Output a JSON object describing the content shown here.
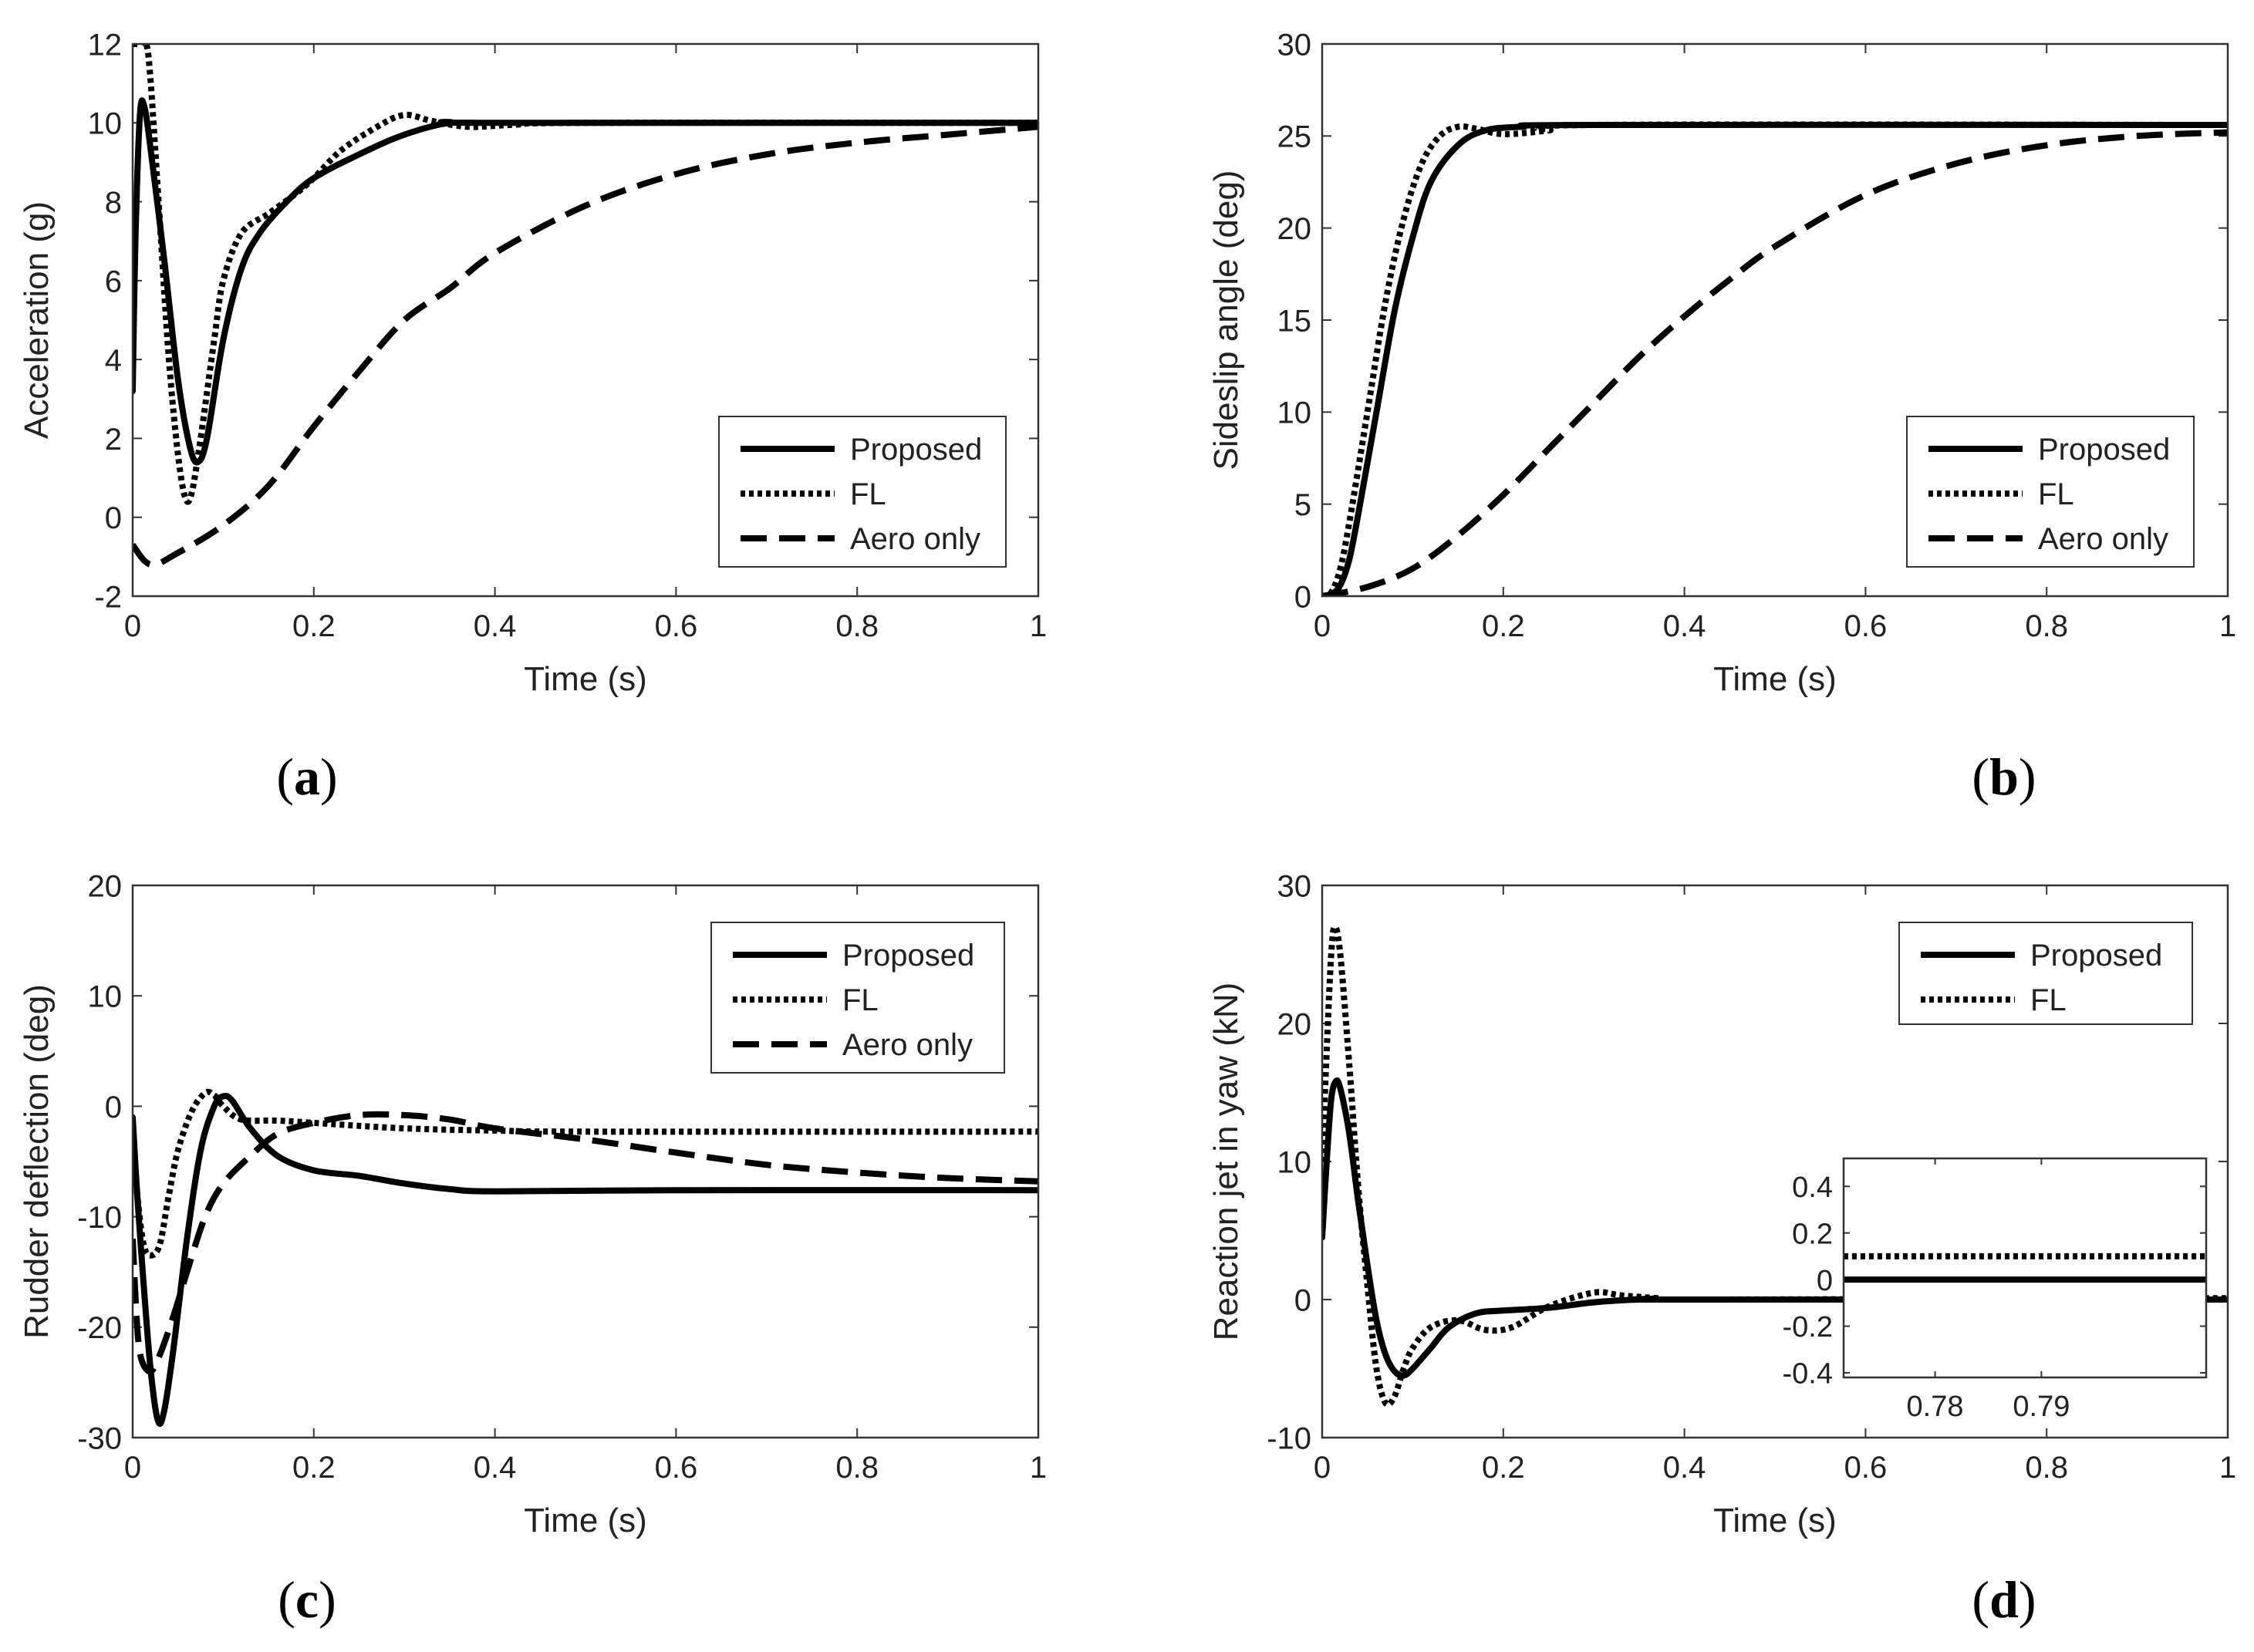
{
  "figure": {
    "legend": {
      "proposed": "Proposed",
      "fl": "FL",
      "aero": "Aero only"
    }
  },
  "chart_data": [
    {
      "id": "a",
      "type": "line",
      "caption": "a",
      "xlabel": "Time (s)",
      "ylabel": "Acceleration (g)",
      "xlim": [
        0,
        1
      ],
      "ylim": [
        -2,
        12
      ],
      "xticks": [
        0,
        0.2,
        0.4,
        0.6,
        0.8,
        1
      ],
      "xtick_labels": [
        "0",
        "0.2",
        "0.4",
        "0.6",
        "0.8",
        "1"
      ],
      "yticks": [
        -2,
        0,
        2,
        4,
        6,
        8,
        10,
        12
      ],
      "ytick_labels": [
        "-2",
        "0",
        "2",
        "4",
        "6",
        "8",
        "10",
        "12"
      ],
      "legend_position": "bottom-right",
      "series": [
        {
          "name": "Proposed",
          "style": "solid",
          "points": [
            [
              0,
              3.2
            ],
            [
              0.003,
              7
            ],
            [
              0.008,
              10.2
            ],
            [
              0.013,
              10.4
            ],
            [
              0.02,
              9.3
            ],
            [
              0.035,
              6.5
            ],
            [
              0.05,
              3.5
            ],
            [
              0.063,
              1.8
            ],
            [
              0.072,
              1.4
            ],
            [
              0.082,
              2
            ],
            [
              0.1,
              4.5
            ],
            [
              0.12,
              6.3
            ],
            [
              0.14,
              7.2
            ],
            [
              0.17,
              8
            ],
            [
              0.2,
              8.6
            ],
            [
              0.25,
              9.2
            ],
            [
              0.3,
              9.7
            ],
            [
              0.35,
              10
            ],
            [
              0.4,
              10
            ],
            [
              1,
              10
            ]
          ]
        },
        {
          "name": "FL",
          "style": "dotted",
          "points": [
            [
              0,
              12
            ],
            [
              0.008,
              12
            ],
            [
              0.015,
              12
            ],
            [
              0.02,
              11
            ],
            [
              0.03,
              7.5
            ],
            [
              0.04,
              4
            ],
            [
              0.05,
              1.6
            ],
            [
              0.058,
              0.5
            ],
            [
              0.065,
              0.6
            ],
            [
              0.075,
              2
            ],
            [
              0.09,
              4.5
            ],
            [
              0.1,
              6
            ],
            [
              0.12,
              7.2
            ],
            [
              0.15,
              7.7
            ],
            [
              0.18,
              8.2
            ],
            [
              0.2,
              8.6
            ],
            [
              0.23,
              9.3
            ],
            [
              0.27,
              9.9
            ],
            [
              0.3,
              10.2
            ],
            [
              0.33,
              10.05
            ],
            [
              0.37,
              9.9
            ],
            [
              0.42,
              9.95
            ],
            [
              0.5,
              10
            ],
            [
              1,
              10
            ]
          ]
        },
        {
          "name": "Aero only",
          "style": "dashed",
          "points": [
            [
              0,
              -0.7
            ],
            [
              0.02,
              -1.2
            ],
            [
              0.05,
              -0.9
            ],
            [
              0.1,
              -0.2
            ],
            [
              0.15,
              0.8
            ],
            [
              0.2,
              2.3
            ],
            [
              0.25,
              3.7
            ],
            [
              0.3,
              5
            ],
            [
              0.35,
              5.8
            ],
            [
              0.4,
              6.7
            ],
            [
              0.5,
              7.9
            ],
            [
              0.6,
              8.7
            ],
            [
              0.7,
              9.2
            ],
            [
              0.8,
              9.5
            ],
            [
              0.9,
              9.7
            ],
            [
              1,
              9.9
            ]
          ]
        }
      ]
    },
    {
      "id": "b",
      "type": "line",
      "caption": "b",
      "xlabel": "Time (s)",
      "ylabel": "Sideslip angle (deg)",
      "xlim": [
        0,
        1
      ],
      "ylim": [
        0,
        30
      ],
      "xticks": [
        0,
        0.2,
        0.4,
        0.6,
        0.8,
        1
      ],
      "xtick_labels": [
        "0",
        "0.2",
        "0.4",
        "0.6",
        "0.8",
        "1"
      ],
      "yticks": [
        0,
        5,
        10,
        15,
        20,
        25,
        30
      ],
      "ytick_labels": [
        "0",
        "5",
        "10",
        "15",
        "20",
        "25",
        "30"
      ],
      "legend_position": "bottom-right",
      "series": [
        {
          "name": "Proposed",
          "style": "solid",
          "points": [
            [
              0,
              0
            ],
            [
              0.01,
              0.1
            ],
            [
              0.02,
              0.6
            ],
            [
              0.03,
              2
            ],
            [
              0.04,
              4.5
            ],
            [
              0.06,
              10
            ],
            [
              0.08,
              15.5
            ],
            [
              0.1,
              19.5
            ],
            [
              0.12,
              22.5
            ],
            [
              0.15,
              24.5
            ],
            [
              0.18,
              25.3
            ],
            [
              0.22,
              25.5
            ],
            [
              0.3,
              25.6
            ],
            [
              1,
              25.6
            ]
          ]
        },
        {
          "name": "FL",
          "style": "dotted",
          "points": [
            [
              0,
              0
            ],
            [
              0.01,
              0.2
            ],
            [
              0.02,
              1.5
            ],
            [
              0.03,
              4
            ],
            [
              0.05,
              10
            ],
            [
              0.07,
              16
            ],
            [
              0.09,
              20.5
            ],
            [
              0.11,
              23.5
            ],
            [
              0.13,
              25
            ],
            [
              0.15,
              25.5
            ],
            [
              0.17,
              25.4
            ],
            [
              0.2,
              25.1
            ],
            [
              0.25,
              25.3
            ],
            [
              0.3,
              25.6
            ],
            [
              1,
              25.6
            ]
          ]
        },
        {
          "name": "Aero only",
          "style": "dashed",
          "points": [
            [
              0,
              0
            ],
            [
              0.05,
              0.5
            ],
            [
              0.1,
              1.5
            ],
            [
              0.15,
              3.3
            ],
            [
              0.2,
              5.5
            ],
            [
              0.25,
              8
            ],
            [
              0.3,
              10.5
            ],
            [
              0.35,
              13
            ],
            [
              0.4,
              15.2
            ],
            [
              0.45,
              17.2
            ],
            [
              0.5,
              19
            ],
            [
              0.6,
              21.8
            ],
            [
              0.7,
              23.5
            ],
            [
              0.8,
              24.5
            ],
            [
              0.9,
              25
            ],
            [
              1,
              25.2
            ]
          ]
        }
      ]
    },
    {
      "id": "c",
      "type": "line",
      "caption": "c",
      "xlabel": "Time (s)",
      "ylabel": "Rudder deflection (deg)",
      "xlim": [
        0,
        1
      ],
      "ylim": [
        -30,
        20
      ],
      "xticks": [
        0,
        0.2,
        0.4,
        0.6,
        0.8,
        1
      ],
      "xtick_labels": [
        "0",
        "0.2",
        "0.4",
        "0.6",
        "0.8",
        "1"
      ],
      "yticks": [
        -30,
        -20,
        -10,
        0,
        10,
        20
      ],
      "ytick_labels": [
        "-30",
        "-20",
        "-10",
        "0",
        "10",
        "20"
      ],
      "legend_position": "top-right",
      "series": [
        {
          "name": "Proposed",
          "style": "solid",
          "points": [
            [
              0,
              -1
            ],
            [
              0.005,
              -8
            ],
            [
              0.012,
              -16
            ],
            [
              0.02,
              -24
            ],
            [
              0.028,
              -28.5
            ],
            [
              0.035,
              -27.5
            ],
            [
              0.045,
              -22
            ],
            [
              0.06,
              -12
            ],
            [
              0.075,
              -4
            ],
            [
              0.09,
              0
            ],
            [
              0.1,
              0.9
            ],
            [
              0.11,
              0.5
            ],
            [
              0.13,
              -2
            ],
            [
              0.16,
              -4.5
            ],
            [
              0.2,
              -5.8
            ],
            [
              0.25,
              -6.3
            ],
            [
              0.3,
              -7
            ],
            [
              0.35,
              -7.5
            ],
            [
              0.4,
              -7.7
            ],
            [
              0.6,
              -7.6
            ],
            [
              1,
              -7.6
            ]
          ]
        },
        {
          "name": "FL",
          "style": "dotted",
          "points": [
            [
              0,
              -3
            ],
            [
              0.005,
              -8
            ],
            [
              0.012,
              -12.5
            ],
            [
              0.02,
              -13.5
            ],
            [
              0.03,
              -12.5
            ],
            [
              0.04,
              -8
            ],
            [
              0.05,
              -4
            ],
            [
              0.065,
              -0.5
            ],
            [
              0.08,
              1.2
            ],
            [
              0.09,
              1
            ],
            [
              0.1,
              0
            ],
            [
              0.12,
              -1.2
            ],
            [
              0.16,
              -1.3
            ],
            [
              0.2,
              -1.5
            ],
            [
              0.3,
              -2
            ],
            [
              0.4,
              -2.2
            ],
            [
              0.5,
              -2.3
            ],
            [
              1,
              -2.3
            ]
          ]
        },
        {
          "name": "Aero only",
          "style": "dashed",
          "points": [
            [
              0,
              -12
            ],
            [
              0.005,
              -20
            ],
            [
              0.01,
              -23
            ],
            [
              0.02,
              -24
            ],
            [
              0.03,
              -22.5
            ],
            [
              0.045,
              -19
            ],
            [
              0.06,
              -15
            ],
            [
              0.08,
              -10
            ],
            [
              0.1,
              -7
            ],
            [
              0.13,
              -4.5
            ],
            [
              0.16,
              -2.5
            ],
            [
              0.2,
              -1.5
            ],
            [
              0.25,
              -0.8
            ],
            [
              0.3,
              -0.8
            ],
            [
              0.35,
              -1.2
            ],
            [
              0.4,
              -2
            ],
            [
              0.5,
              -3
            ],
            [
              0.6,
              -4.2
            ],
            [
              0.7,
              -5.3
            ],
            [
              0.8,
              -6
            ],
            [
              0.9,
              -6.5
            ],
            [
              1,
              -6.8
            ]
          ]
        }
      ]
    },
    {
      "id": "d",
      "type": "line",
      "caption": "d",
      "xlabel": "Time (s)",
      "ylabel": "Reaction jet in yaw (kN)",
      "xlim": [
        0,
        1
      ],
      "ylim": [
        -10,
        30
      ],
      "xticks": [
        0,
        0.2,
        0.4,
        0.6,
        0.8,
        1
      ],
      "xtick_labels": [
        "0",
        "0.2",
        "0.4",
        "0.6",
        "0.8",
        "1"
      ],
      "yticks": [
        -10,
        0,
        10,
        20,
        30
      ],
      "ytick_labels": [
        "-10",
        "0",
        "10",
        "20",
        "30"
      ],
      "legend_position": "top-right",
      "series": [
        {
          "name": "Proposed",
          "style": "solid",
          "points": [
            [
              0,
              4.5
            ],
            [
              0.005,
              10
            ],
            [
              0.01,
              14.5
            ],
            [
              0.015,
              15.8
            ],
            [
              0.02,
              15.3
            ],
            [
              0.03,
              12
            ],
            [
              0.04,
              7
            ],
            [
              0.05,
              2.5
            ],
            [
              0.06,
              -1.5
            ],
            [
              0.07,
              -4
            ],
            [
              0.08,
              -5.2
            ],
            [
              0.09,
              -5.5
            ],
            [
              0.1,
              -5
            ],
            [
              0.12,
              -3.5
            ],
            [
              0.14,
              -2
            ],
            [
              0.17,
              -1
            ],
            [
              0.2,
              -0.8
            ],
            [
              0.25,
              -0.6
            ],
            [
              0.3,
              -0.2
            ],
            [
              0.35,
              0
            ],
            [
              0.4,
              0
            ],
            [
              1,
              0
            ]
          ]
        },
        {
          "name": "FL",
          "style": "dotted",
          "points": [
            [
              0,
              10
            ],
            [
              0.005,
              18
            ],
            [
              0.01,
              25
            ],
            [
              0.014,
              27
            ],
            [
              0.02,
              25
            ],
            [
              0.03,
              17
            ],
            [
              0.04,
              8
            ],
            [
              0.05,
              1
            ],
            [
              0.06,
              -5
            ],
            [
              0.07,
              -7.5
            ],
            [
              0.08,
              -7
            ],
            [
              0.09,
              -5
            ],
            [
              0.1,
              -3.5
            ],
            [
              0.12,
              -2
            ],
            [
              0.15,
              -1.5
            ],
            [
              0.18,
              -2.2
            ],
            [
              0.21,
              -2
            ],
            [
              0.25,
              -0.5
            ],
            [
              0.3,
              0.5
            ],
            [
              0.33,
              0.3
            ],
            [
              0.37,
              0.1
            ],
            [
              0.4,
              0
            ],
            [
              1,
              0.1
            ]
          ]
        }
      ],
      "inset": {
        "xlim": [
          0.7714,
          0.8055
        ],
        "ylim": [
          -0.42,
          0.52
        ],
        "xticks": [
          0.78,
          0.79
        ],
        "xtick_labels": [
          "0.78",
          "0.79"
        ],
        "yticks": [
          -0.4,
          -0.2,
          0,
          0.2,
          0.4
        ],
        "ytick_labels": [
          "-0.4",
          "-0.2",
          "0",
          "0.2",
          "0.4"
        ],
        "series": [
          {
            "name": "Proposed",
            "style": "solid",
            "points": [
              [
                0.7714,
                0
              ],
              [
                0.8055,
                0
              ]
            ]
          },
          {
            "name": "FL",
            "style": "dotted",
            "points": [
              [
                0.7714,
                0.1
              ],
              [
                0.8055,
                0.1
              ]
            ]
          }
        ]
      }
    }
  ]
}
